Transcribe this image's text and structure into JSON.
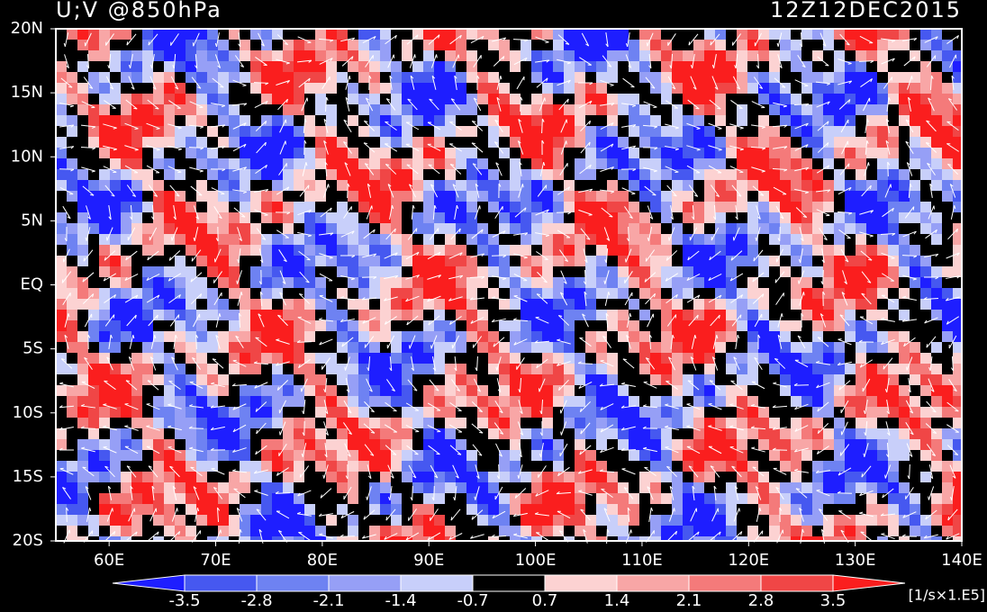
{
  "chart_data": {
    "type": "map",
    "title": "U;V @850hPa",
    "date": "12Z12DEC2015",
    "xlim": [
      55,
      140
    ],
    "ylim": [
      -20,
      20
    ],
    "xticks": [
      {
        "value": 60,
        "label": "60E"
      },
      {
        "value": 70,
        "label": "70E"
      },
      {
        "value": 80,
        "label": "80E"
      },
      {
        "value": 90,
        "label": "90E"
      },
      {
        "value": 100,
        "label": "100E"
      },
      {
        "value": 110,
        "label": "110E"
      },
      {
        "value": 120,
        "label": "120E"
      },
      {
        "value": 130,
        "label": "130E"
      },
      {
        "value": 140,
        "label": "140E"
      }
    ],
    "yticks": [
      {
        "value": -20,
        "label": "20S"
      },
      {
        "value": -15,
        "label": "15S"
      },
      {
        "value": -10,
        "label": "10S"
      },
      {
        "value": -5,
        "label": "5S"
      },
      {
        "value": 0,
        "label": "EQ"
      },
      {
        "value": 5,
        "label": "5N"
      },
      {
        "value": 10,
        "label": "10N"
      },
      {
        "value": 15,
        "label": "15N"
      },
      {
        "value": 20,
        "label": "20N"
      }
    ],
    "levels": [
      -3.5,
      -2.8,
      -2.1,
      -1.4,
      -0.7,
      0.7,
      1.4,
      2.1,
      2.8,
      3.5
    ],
    "colors": [
      "#1e1eff",
      "#4658f0",
      "#6e82f2",
      "#969ff6",
      "#c8cffa",
      "#000000",
      "#fcd2d2",
      "#f8a6a6",
      "#f47a7a",
      "#f04646",
      "#fa1e1e"
    ],
    "unit": "[1/s×1.E5]"
  }
}
